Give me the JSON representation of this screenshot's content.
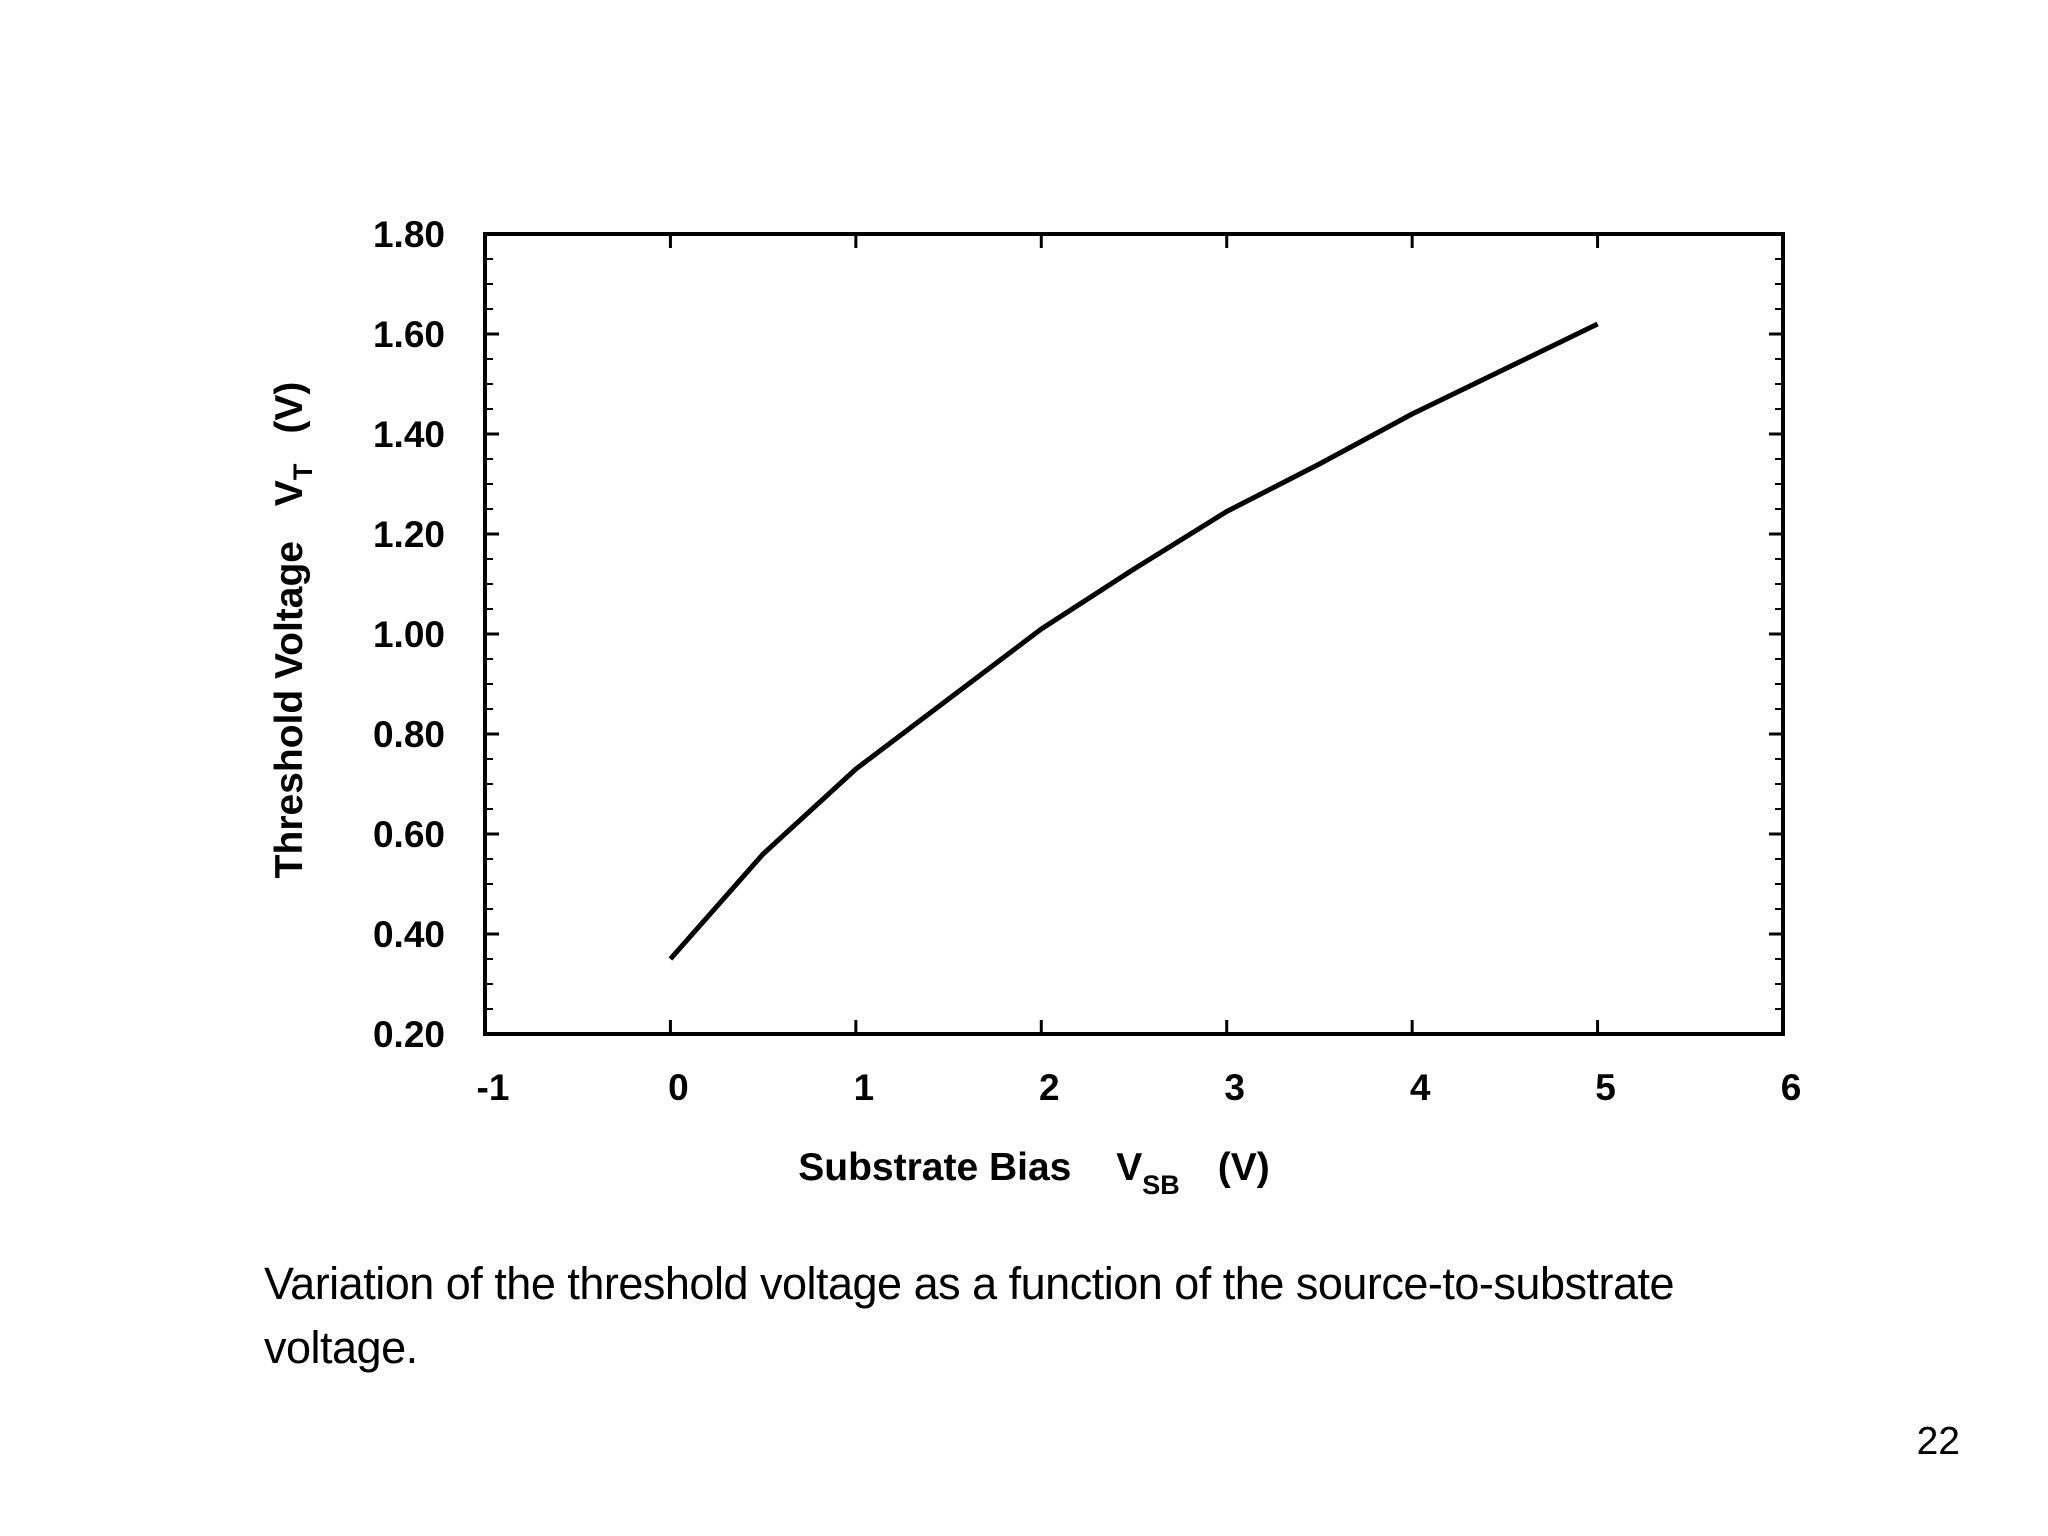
{
  "chart_data": {
    "type": "line",
    "xlabel": {
      "main": "Substrate Bias",
      "var": "V",
      "sub": "SB",
      "unit": "(V)"
    },
    "ylabel": {
      "main": "Threshold Voltage",
      "var": "V",
      "sub": "T",
      "unit": "(V)"
    },
    "xlim": [
      -1,
      6
    ],
    "ylim": [
      0.2,
      1.8
    ],
    "x_ticks": [
      "-1",
      "0",
      "1",
      "2",
      "3",
      "4",
      "5",
      "6"
    ],
    "y_ticks": [
      "1.80",
      "1.60",
      "1.40",
      "1.20",
      "1.00",
      "0.80",
      "0.60",
      "0.40",
      "0.20"
    ],
    "grid": false,
    "series": [
      {
        "color": "#000000",
        "x": [
          0,
          0.5,
          1,
          1.5,
          2,
          2.5,
          3,
          3.5,
          4,
          4.5,
          5
        ],
        "y": [
          0.35,
          0.56,
          0.73,
          0.87,
          1.01,
          1.13,
          1.245,
          1.34,
          1.44,
          1.53,
          1.62
        ]
      }
    ]
  },
  "caption": "Variation of the threshold voltage as a function of the source-to-substrate voltage.",
  "page_number": "22"
}
